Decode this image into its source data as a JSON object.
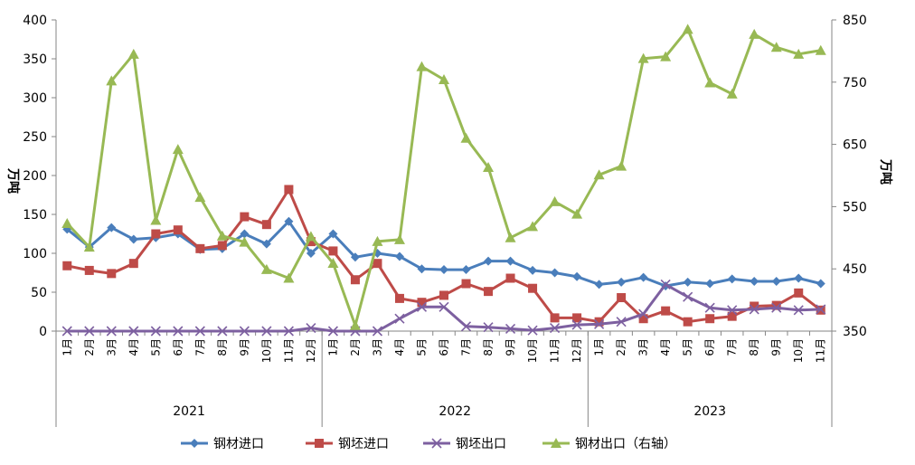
{
  "chart_data": {
    "type": "line",
    "left_axis": {
      "label": "万吨",
      "min": 0,
      "max": 400,
      "step": 50
    },
    "right_axis": {
      "label": "万吨",
      "min": 350,
      "max": 850,
      "step": 100
    },
    "x": [
      "1月",
      "2月",
      "3月",
      "4月",
      "5月",
      "6月",
      "7月",
      "8月",
      "9月",
      "10月",
      "11月",
      "12月",
      "1月",
      "2月",
      "3月",
      "4月",
      "5月",
      "6月",
      "7月",
      "8月",
      "9月",
      "10月",
      "11月",
      "12月",
      "1月",
      "2月",
      "3月",
      "4月",
      "5月",
      "6月",
      "7月",
      "8月",
      "9月",
      "10月",
      "11月"
    ],
    "groups": [
      {
        "label": "2021",
        "start": 0,
        "count": 12
      },
      {
        "label": "2022",
        "start": 12,
        "count": 12
      },
      {
        "label": "2023",
        "start": 24,
        "count": 11
      }
    ],
    "series": [
      {
        "name": "钢材进口",
        "axis": "left",
        "color": "#4a7ebb",
        "marker": "diamond",
        "values": [
          131,
          108,
          133,
          118,
          120,
          125,
          105,
          106,
          125,
          112,
          141,
          100,
          125,
          95,
          100,
          96,
          80,
          79,
          79,
          90,
          90,
          78,
          75,
          70,
          60,
          63,
          69,
          58,
          63,
          61,
          67,
          64,
          64,
          68,
          61
        ]
      },
      {
        "name": "钢坯进口",
        "axis": "left",
        "color": "#be4b48",
        "marker": "square",
        "values": [
          84,
          78,
          74,
          87,
          125,
          130,
          106,
          110,
          147,
          137,
          182,
          115,
          103,
          66,
          87,
          42,
          37,
          46,
          61,
          51,
          68,
          55,
          17,
          17,
          12,
          43,
          16,
          26,
          12,
          16,
          19,
          32,
          33,
          49,
          27
        ]
      },
      {
        "name": "钢坯出口",
        "axis": "left",
        "color": "#7d60a0",
        "marker": "x",
        "values": [
          0,
          0,
          0,
          0,
          0,
          0,
          0,
          0,
          0,
          0,
          0,
          4,
          0,
          0,
          0,
          16,
          31,
          31,
          6,
          5,
          3,
          1,
          4,
          8,
          9,
          12,
          22,
          60,
          44,
          30,
          27,
          28,
          30,
          27,
          28
        ]
      },
      {
        "name": "钢材出口（右轴）",
        "axis": "right",
        "color": "#98b954",
        "marker": "triangle",
        "values": [
          523,
          485,
          752,
          795,
          528,
          642,
          565,
          503,
          493,
          449,
          435,
          502,
          459,
          359,
          494,
          497,
          775,
          754,
          660,
          613,
          500,
          518,
          558,
          538,
          601,
          615,
          788,
          791,
          835,
          749,
          731,
          827,
          806,
          795,
          801
        ]
      }
    ],
    "grid": false,
    "legend_position": "bottom"
  }
}
